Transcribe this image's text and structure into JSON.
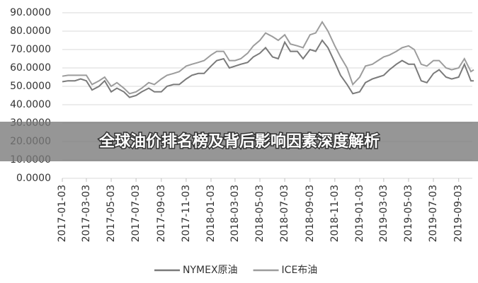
{
  "chart_data": {
    "type": "line",
    "x": [
      "2017-01-03",
      "2017-01-17",
      "2017-02-03",
      "2017-02-17",
      "2017-03-03",
      "2017-03-17",
      "2017-04-03",
      "2017-04-17",
      "2017-05-03",
      "2017-05-17",
      "2017-06-03",
      "2017-06-17",
      "2017-07-03",
      "2017-07-17",
      "2017-08-03",
      "2017-08-17",
      "2017-09-03",
      "2017-09-17",
      "2017-10-03",
      "2017-10-17",
      "2017-11-03",
      "2017-11-17",
      "2017-12-03",
      "2017-12-17",
      "2018-01-03",
      "2018-01-17",
      "2018-02-03",
      "2018-02-17",
      "2018-03-03",
      "2018-03-17",
      "2018-04-03",
      "2018-04-17",
      "2018-05-03",
      "2018-05-17",
      "2018-06-03",
      "2018-06-17",
      "2018-07-03",
      "2018-07-17",
      "2018-08-03",
      "2018-08-17",
      "2018-09-03",
      "2018-09-17",
      "2018-10-03",
      "2018-10-17",
      "2018-11-03",
      "2018-11-17",
      "2018-12-03",
      "2018-12-17",
      "2019-01-03",
      "2019-01-17",
      "2019-02-03",
      "2019-02-17",
      "2019-03-03",
      "2019-03-17",
      "2019-04-03",
      "2019-04-17",
      "2019-05-03",
      "2019-05-17",
      "2019-06-03",
      "2019-06-17",
      "2019-07-03",
      "2019-07-17",
      "2019-08-03",
      "2019-08-17",
      "2019-09-03",
      "2019-09-17",
      "2019-10-03",
      "2019-10-10"
    ],
    "series": [
      {
        "name": "NYMEX原油",
        "color": "#7a7a7a",
        "values": [
          52.5,
          53,
          53,
          54,
          53,
          48,
          50,
          53,
          47,
          49,
          47,
          44,
          45,
          47,
          49,
          47,
          47,
          50,
          51,
          51,
          54,
          56,
          57,
          57,
          61,
          64,
          65,
          60,
          61,
          62,
          63,
          66,
          68,
          71,
          66,
          65,
          74,
          69,
          69,
          65,
          70,
          69,
          75,
          71,
          63,
          56,
          51,
          46,
          47,
          52,
          54,
          55,
          56,
          59,
          62,
          64,
          62,
          62,
          53,
          52,
          57,
          59,
          55,
          54,
          55,
          62,
          53,
          53
        ]
      },
      {
        "name": "ICE布油",
        "color": "#9c9c9c",
        "values": [
          55.5,
          56,
          56,
          56,
          56,
          51,
          53,
          55,
          50,
          52,
          49,
          46,
          47,
          49,
          52,
          51,
          54,
          56,
          57,
          58,
          61,
          62,
          63,
          64,
          67,
          69,
          69,
          64,
          64,
          65,
          68,
          72,
          75,
          79,
          77,
          75,
          78,
          73,
          72,
          71,
          78,
          79,
          85,
          80,
          72,
          66,
          60,
          51,
          55,
          61,
          62,
          64,
          66,
          67,
          69,
          71,
          72,
          70,
          62,
          61,
          64,
          64,
          60,
          59,
          60,
          65,
          58,
          59
        ]
      }
    ],
    "xlim": [
      "2017-01-03",
      "2019-10-10"
    ],
    "xticks": [
      "2017-01-03",
      "2017-03-03",
      "2017-05-03",
      "2017-07-03",
      "2017-09-03",
      "2017-11-03",
      "2018-01-03",
      "2018-03-03",
      "2018-05-03",
      "2018-07-03",
      "2018-09-03",
      "2018-11-03",
      "2019-01-03",
      "2019-03-03",
      "2019-05-03",
      "2019-07-03",
      "2019-09-03"
    ],
    "ylim": [
      0,
      90
    ],
    "yticks": [
      {
        "value": 0,
        "label": "0.0000"
      },
      {
        "value": 10,
        "label": "10.0000"
      },
      {
        "value": 20,
        "label": "20.0000"
      },
      {
        "value": 30,
        "label": "30.0000"
      },
      {
        "value": 40,
        "label": "40.0000"
      },
      {
        "value": 50,
        "label": "50.0000"
      },
      {
        "value": 60,
        "label": "60.0000"
      },
      {
        "value": 70,
        "label": "70.0000"
      },
      {
        "value": 80,
        "label": "80.0000"
      },
      {
        "value": 90,
        "label": "90.0000"
      }
    ],
    "grid": true,
    "legend": "bottom"
  },
  "banner": {
    "title": "全球油价排名榜及背后影响因素深度解析"
  }
}
